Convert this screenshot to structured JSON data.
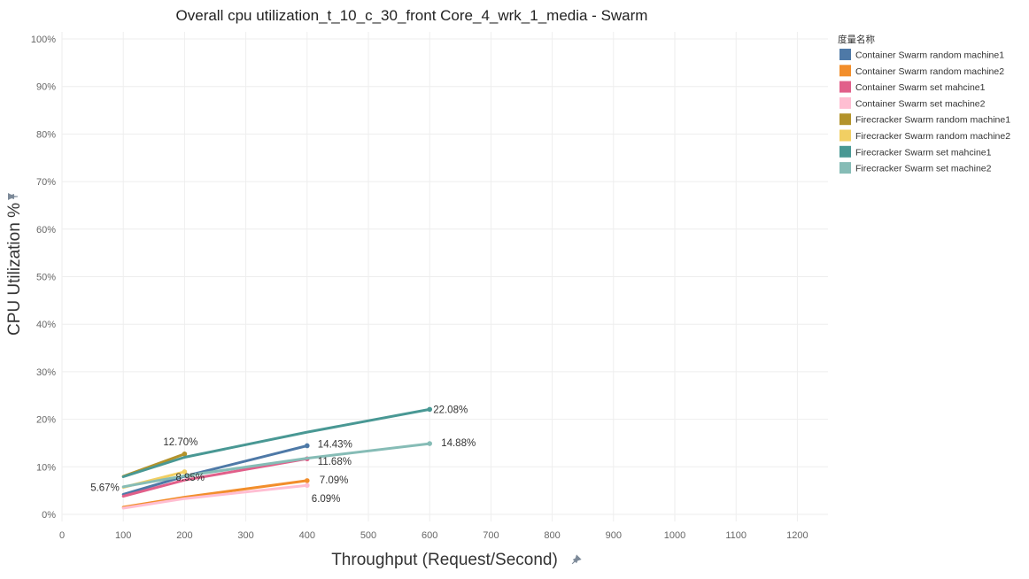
{
  "chart_data": {
    "type": "line",
    "title": "Overall cpu utilization_t_10_c_30_front Core_4_wrk_1_media - Swarm",
    "xlabel": "Throughput (Request/Second)",
    "ylabel": "CPU Utilization %",
    "xlim": [
      0,
      1250
    ],
    "ylim": [
      -1.5,
      101.5
    ],
    "xticks": [
      0,
      100,
      200,
      300,
      400,
      500,
      600,
      700,
      800,
      900,
      1000,
      1100,
      1200
    ],
    "yticks": [
      0,
      10,
      20,
      30,
      40,
      50,
      60,
      70,
      80,
      90,
      100
    ],
    "ytick_labels": [
      "0%",
      "10%",
      "20%",
      "30%",
      "40%",
      "50%",
      "60%",
      "70%",
      "80%",
      "90%",
      "100%"
    ],
    "grid": true,
    "legend_title": "度量名称",
    "legend_position": "top-right",
    "series": [
      {
        "name": "Container Swarm random machine1",
        "color": "#4e79a7",
        "x": [
          100,
          200,
          400
        ],
        "y": [
          4.2,
          8.0,
          14.43
        ],
        "labels": [
          null,
          null,
          "14.43%"
        ]
      },
      {
        "name": "Container Swarm random machine2",
        "color": "#f28e2b",
        "x": [
          100,
          200,
          400
        ],
        "y": [
          1.5,
          3.6,
          7.09
        ],
        "labels": [
          null,
          null,
          "7.09%"
        ]
      },
      {
        "name": "Container Swarm set mahcine1",
        "color": "#e15f8a",
        "x": [
          100,
          200,
          400
        ],
        "y": [
          3.8,
          7.2,
          11.68
        ],
        "labels": [
          null,
          null,
          "11.68%"
        ]
      },
      {
        "name": "Container Swarm set machine2",
        "color": "#ffbed2",
        "x": [
          100,
          200,
          400
        ],
        "y": [
          1.3,
          3.3,
          6.09
        ],
        "labels": [
          null,
          null,
          "6.09%"
        ]
      },
      {
        "name": "Firecracker Swarm random machine1",
        "color": "#b3932b",
        "x": [
          100,
          200
        ],
        "y": [
          8.0,
          12.7
        ],
        "labels": [
          null,
          "12.70%"
        ]
      },
      {
        "name": "Firecracker Swarm random machine2",
        "color": "#f1cf63",
        "x": [
          100,
          200
        ],
        "y": [
          5.67,
          8.95
        ],
        "labels": [
          "5.67%",
          "8.95%"
        ]
      },
      {
        "name": "Firecracker Swarm set mahcine1",
        "color": "#499894",
        "x": [
          100,
          200,
          400,
          600
        ],
        "y": [
          7.9,
          12.0,
          17.3,
          22.08
        ],
        "labels": [
          null,
          null,
          null,
          "22.08%"
        ]
      },
      {
        "name": "Firecracker Swarm set machine2",
        "color": "#86bcb6",
        "x": [
          100,
          200,
          400,
          600
        ],
        "y": [
          5.8,
          8.1,
          11.8,
          14.88
        ],
        "labels": [
          null,
          null,
          null,
          "14.88%"
        ]
      }
    ]
  }
}
